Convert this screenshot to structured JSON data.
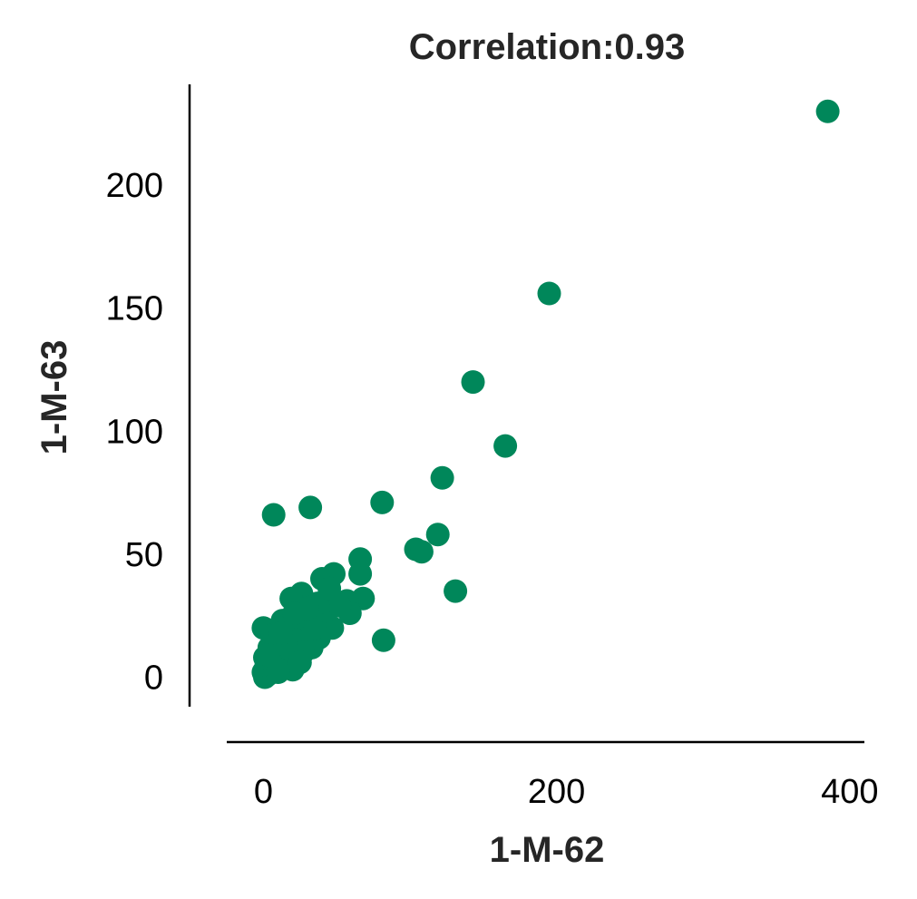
{
  "chart_data": {
    "type": "scatter",
    "title": "Correlation:0.93",
    "xlabel": "1-M-62",
    "ylabel": "1-M-63",
    "xlim": [
      -25,
      410
    ],
    "ylim": [
      -12,
      241
    ],
    "xticks": [
      0,
      200,
      400
    ],
    "xtick_labels": [
      "0",
      "200",
      "400"
    ],
    "yticks": [
      0,
      50,
      100,
      150,
      200
    ],
    "ytick_labels": [
      "0",
      "50",
      "100",
      "150",
      "200"
    ],
    "grid": false,
    "legend": "none",
    "marker_color": "#00875a",
    "series": [
      {
        "points": [
          [
            385,
            230
          ],
          [
            195,
            156
          ],
          [
            143,
            120
          ],
          [
            165,
            94
          ],
          [
            122,
            81
          ],
          [
            81,
            71
          ],
          [
            32,
            69
          ],
          [
            7,
            66
          ],
          [
            104,
            52
          ],
          [
            108,
            51
          ],
          [
            119,
            58
          ],
          [
            131,
            35
          ],
          [
            82,
            15
          ],
          [
            66,
            48
          ],
          [
            66,
            42
          ],
          [
            68,
            32
          ],
          [
            57,
            31
          ],
          [
            59,
            26
          ],
          [
            48,
            42
          ],
          [
            40,
            40
          ],
          [
            26,
            34
          ],
          [
            19,
            32
          ],
          [
            47,
            20
          ],
          [
            38,
            16
          ],
          [
            33,
            12
          ],
          [
            29,
            24
          ],
          [
            24,
            19
          ],
          [
            18,
            21
          ],
          [
            14,
            15
          ],
          [
            11,
            10
          ],
          [
            17,
            7
          ],
          [
            20,
            3
          ],
          [
            14,
            4
          ],
          [
            9,
            6
          ],
          [
            7,
            9
          ],
          [
            5,
            3
          ],
          [
            3,
            1
          ],
          [
            1,
            0
          ],
          [
            0,
            2
          ],
          [
            2,
            5
          ],
          [
            0,
            20
          ],
          [
            4,
            12
          ],
          [
            1,
            8
          ],
          [
            6,
            17
          ],
          [
            13,
            23
          ],
          [
            22,
            15
          ],
          [
            27,
            10
          ],
          [
            35,
            20
          ],
          [
            43,
            27
          ],
          [
            52,
            29
          ],
          [
            37,
            30
          ],
          [
            30,
            28
          ],
          [
            10,
            2
          ],
          [
            16,
            12
          ],
          [
            25,
            6
          ],
          [
            8,
            13
          ],
          [
            3,
            9
          ],
          [
            12,
            18
          ],
          [
            21,
            26
          ],
          [
            45,
            36
          ]
        ]
      }
    ]
  }
}
